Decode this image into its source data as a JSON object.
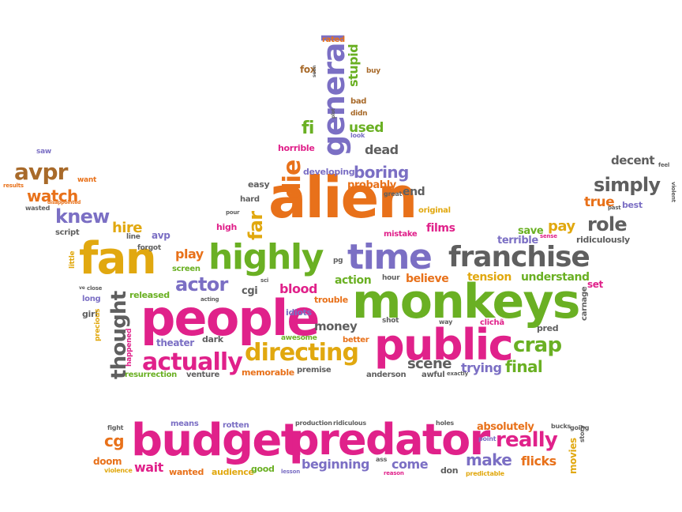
{
  "colors": {
    "orange": "#e8711a",
    "pink": "#e0218a",
    "green": "#6ab023",
    "purple": "#7b6fc4",
    "gray": "#5f5f5f",
    "gold": "#e1a80f",
    "brown": "#a86a2a"
  },
  "words": [
    {
      "text": "alien",
      "color": "orange"
    },
    {
      "text": "monkeys",
      "color": "green"
    },
    {
      "text": "people",
      "color": "pink"
    },
    {
      "text": "public",
      "color": "pink"
    },
    {
      "text": "budget",
      "color": "pink"
    },
    {
      "text": "predator",
      "color": "pink"
    },
    {
      "text": "fan",
      "color": "gold"
    },
    {
      "text": "highly",
      "color": "green"
    },
    {
      "text": "time",
      "color": "purple"
    },
    {
      "text": "franchise",
      "color": "gray"
    },
    {
      "text": "general",
      "color": "purple"
    },
    {
      "text": "directing",
      "color": "gold"
    },
    {
      "text": "actually",
      "color": "pink"
    },
    {
      "text": "thought",
      "color": "gray"
    },
    {
      "text": "actor",
      "color": "purple"
    },
    {
      "text": "crap",
      "color": "green"
    },
    {
      "text": "final",
      "color": "green"
    },
    {
      "text": "scene",
      "color": "gray"
    },
    {
      "text": "trying",
      "color": "purple"
    },
    {
      "text": "really",
      "color": "pink"
    },
    {
      "text": "make",
      "color": "purple"
    },
    {
      "text": "flicks",
      "color": "orange"
    },
    {
      "text": "beginning",
      "color": "purple"
    },
    {
      "text": "come",
      "color": "purple"
    },
    {
      "text": "simply",
      "color": "gray"
    },
    {
      "text": "role",
      "color": "gray"
    },
    {
      "text": "true",
      "color": "orange"
    },
    {
      "text": "decent",
      "color": "gray"
    },
    {
      "text": "pay",
      "color": "gold"
    },
    {
      "text": "boring",
      "color": "purple"
    },
    {
      "text": "die",
      "color": "orange"
    },
    {
      "text": "far",
      "color": "gold"
    },
    {
      "text": "fi",
      "color": "green"
    },
    {
      "text": "used",
      "color": "green"
    },
    {
      "text": "stupid",
      "color": "green"
    },
    {
      "text": "dead",
      "color": "gray"
    },
    {
      "text": "end",
      "color": "gray"
    },
    {
      "text": "probably",
      "color": "orange"
    },
    {
      "text": "avpr",
      "color": "brown"
    },
    {
      "text": "watch",
      "color": "orange"
    },
    {
      "text": "knew",
      "color": "purple"
    },
    {
      "text": "hire",
      "color": "gold"
    },
    {
      "text": "play",
      "color": "orange"
    },
    {
      "text": "blood",
      "color": "pink"
    },
    {
      "text": "action",
      "color": "green"
    },
    {
      "text": "believe",
      "color": "orange"
    },
    {
      "text": "tension",
      "color": "gold"
    },
    {
      "text": "understand",
      "color": "green"
    },
    {
      "text": "films",
      "color": "pink"
    },
    {
      "text": "save",
      "color": "green"
    },
    {
      "text": "terrible",
      "color": "purple"
    },
    {
      "text": "money",
      "color": "gray"
    },
    {
      "text": "wait",
      "color": "pink"
    },
    {
      "text": "cg",
      "color": "orange"
    },
    {
      "text": "doom",
      "color": "orange"
    },
    {
      "text": "wanted",
      "color": "orange"
    },
    {
      "text": "audience",
      "color": "gold"
    },
    {
      "text": "good",
      "color": "green"
    },
    {
      "text": "don",
      "color": "gray"
    },
    {
      "text": "absolutely",
      "color": "orange"
    },
    {
      "text": "movies",
      "color": "gold"
    },
    {
      "text": "means",
      "color": "purple"
    },
    {
      "text": "rotten",
      "color": "purple"
    },
    {
      "text": "production",
      "color": "gray"
    },
    {
      "text": "ridiculous",
      "color": "gray"
    },
    {
      "text": "holes",
      "color": "gray"
    },
    {
      "text": "point",
      "color": "purple"
    },
    {
      "text": "bucks",
      "color": "gray"
    },
    {
      "text": "going",
      "color": "gray"
    },
    {
      "text": "story",
      "color": "gray"
    },
    {
      "text": "fight",
      "color": "gray"
    },
    {
      "text": "violence",
      "color": "gold"
    },
    {
      "text": "lesson",
      "color": "purple"
    },
    {
      "text": "ass",
      "color": "gray"
    },
    {
      "text": "reason",
      "color": "pink"
    },
    {
      "text": "predictable",
      "color": "gold"
    },
    {
      "text": "rated",
      "color": "orange"
    },
    {
      "text": "fox",
      "color": "brown"
    },
    {
      "text": "buy",
      "color": "brown"
    },
    {
      "text": "bad",
      "color": "brown"
    },
    {
      "text": "didn",
      "color": "brown"
    },
    {
      "text": "look",
      "color": "purple"
    },
    {
      "text": "plot",
      "color": "gray"
    },
    {
      "text": "horrible",
      "color": "pink"
    },
    {
      "text": "developing",
      "color": "purple"
    },
    {
      "text": "easy",
      "color": "gray"
    },
    {
      "text": "hard",
      "color": "gray"
    },
    {
      "text": "great",
      "color": "gray"
    },
    {
      "text": "original",
      "color": "gold"
    },
    {
      "text": "mistake",
      "color": "pink"
    },
    {
      "text": "high",
      "color": "pink"
    },
    {
      "text": "pour",
      "color": "gray"
    },
    {
      "text": "line",
      "color": "gray"
    },
    {
      "text": "avp",
      "color": "purple"
    },
    {
      "text": "forgot",
      "color": "gray"
    },
    {
      "text": "screen",
      "color": "green"
    },
    {
      "text": "script",
      "color": "gray"
    },
    {
      "text": "saw",
      "color": "purple"
    },
    {
      "text": "results",
      "color": "orange"
    },
    {
      "text": "want",
      "color": "orange"
    },
    {
      "text": "disappointed",
      "color": "orange"
    },
    {
      "text": "wasted",
      "color": "gray"
    },
    {
      "text": "little",
      "color": "gold"
    },
    {
      "text": "long",
      "color": "purple"
    },
    {
      "text": "close",
      "color": "gray"
    },
    {
      "text": "ve",
      "color": "gray"
    },
    {
      "text": "girl",
      "color": "gray"
    },
    {
      "text": "precious",
      "color": "gold"
    },
    {
      "text": "released",
      "color": "green"
    },
    {
      "text": "acting",
      "color": "gray"
    },
    {
      "text": "cgi",
      "color": "gray"
    },
    {
      "text": "sci",
      "color": "gray"
    },
    {
      "text": "pg",
      "color": "gray"
    },
    {
      "text": "idiots",
      "color": "purple"
    },
    {
      "text": "awesome",
      "color": "green"
    },
    {
      "text": "trouble",
      "color": "orange"
    },
    {
      "text": "hour",
      "color": "gray"
    },
    {
      "text": "shot",
      "color": "gray"
    },
    {
      "text": "better",
      "color": "orange"
    },
    {
      "text": "way",
      "color": "gray"
    },
    {
      "text": "clichã",
      "color": "pink"
    },
    {
      "text": "pred",
      "color": "gray"
    },
    {
      "text": "set",
      "color": "pink"
    },
    {
      "text": "carnage",
      "color": "gray"
    },
    {
      "text": "ridiculously",
      "color": "gray"
    },
    {
      "text": "sense",
      "color": "pink"
    },
    {
      "text": "best",
      "color": "purple"
    },
    {
      "text": "past",
      "color": "gray"
    },
    {
      "text": "feel",
      "color": "gray"
    },
    {
      "text": "violent",
      "color": "gray"
    },
    {
      "text": "happened",
      "color": "pink"
    },
    {
      "text": "theater",
      "color": "purple"
    },
    {
      "text": "dark",
      "color": "gray"
    },
    {
      "text": "resurrection",
      "color": "green"
    },
    {
      "text": "venture",
      "color": "gray"
    },
    {
      "text": "memorable",
      "color": "orange"
    },
    {
      "text": "premise",
      "color": "gray"
    },
    {
      "text": "anderson",
      "color": "gray"
    },
    {
      "text": "awful",
      "color": "gray"
    },
    {
      "text": "exactly",
      "color": "gray"
    },
    {
      "text": "seen",
      "color": "gray"
    }
  ]
}
